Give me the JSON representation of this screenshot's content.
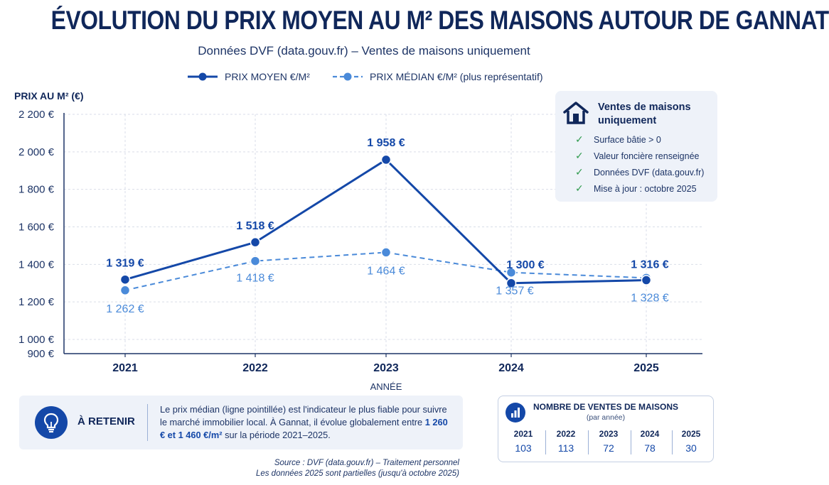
{
  "title": "ÉVOLUTION DU PRIX MOYEN AU M² DES MAISONS AUTOUR DE GANNAT",
  "subtitle": "Données DVF (data.gouv.fr) – Ventes de maisons uniquement",
  "colors": {
    "primary": "#1448a8",
    "secondary": "#4a8ad9",
    "text": "#10275a",
    "check": "#2e9a4d"
  },
  "chart_data": {
    "type": "line",
    "ylabel": "PRIX AU M² (€)",
    "xlabel": "ANNÉE",
    "categories": [
      "2021",
      "2022",
      "2023",
      "2024",
      "2025"
    ],
    "ylim": [
      900,
      2200
    ],
    "yticks": [
      900,
      1000,
      1200,
      1400,
      1600,
      1800,
      2000,
      2200
    ],
    "ytick_labels": [
      "900 €",
      "1 000 €",
      "1 200 €",
      "1 400 €",
      "1 600 €",
      "1 800 €",
      "2 000 €",
      "2 200 €"
    ],
    "grid": true,
    "legend_position": "top",
    "series": [
      {
        "name": "PRIX MOYEN €/M²",
        "style": "solid",
        "values": [
          1319,
          1518,
          1958,
          1300,
          1316
        ],
        "labels": [
          "1 319 €",
          "1 518 €",
          "1 958 €",
          "1 300 €",
          "1 316 €"
        ]
      },
      {
        "name": "PRIX MÉDIAN €/M² (plus représentatif)",
        "style": "dashed",
        "values": [
          1262,
          1418,
          1464,
          1357,
          1328
        ],
        "labels": [
          "1 262 €",
          "1 418 €",
          "1 464 €",
          "1 357 €",
          "1 328 €"
        ]
      }
    ]
  },
  "infobox": {
    "title": "Ventes de maisons uniquement",
    "icon": "house-icon",
    "items": [
      "Surface bâtie > 0",
      "Valeur foncière renseignée",
      "Données DVF (data.gouv.fr)",
      "Mise à jour : octobre 2025"
    ]
  },
  "retenir": {
    "label": "À RETENIR",
    "icon": "lightbulb-icon",
    "text_before": "Le prix médian (ligne pointillée) est l'indicateur le plus fiable pour suivre le marché immobilier local. À Gannat, il évolue globalement entre",
    "highlight": "1 260 € et 1 460 €/m²",
    "text_after": "sur la période 2021–2025."
  },
  "ventes": {
    "title": "NOMBRE DE VENTES DE MAISONS",
    "subtitle": "(par année)",
    "icon": "bar-chart-icon",
    "years": [
      {
        "year": "2021",
        "count": "103"
      },
      {
        "year": "2022",
        "count": "113"
      },
      {
        "year": "2023",
        "count": "72"
      },
      {
        "year": "2024",
        "count": "78"
      },
      {
        "year": "2025",
        "count": "30"
      }
    ]
  },
  "source": {
    "line1": "Source : DVF (data.gouv.fr) – Traitement personnel",
    "line2": "Les données 2025 sont partielles (jusqu'à octobre 2025)"
  }
}
